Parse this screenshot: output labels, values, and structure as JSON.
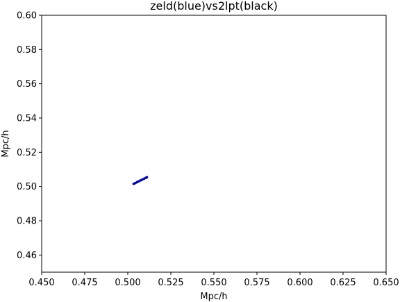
{
  "chart_data": {
    "type": "scatter",
    "title": "zeld(blue)vs2lpt(black)",
    "xlabel": "Mpc/h",
    "ylabel": "Mpc/h",
    "xlim": [
      0.45,
      0.65
    ],
    "ylim": [
      0.45,
      0.6
    ],
    "xticks": [
      "0.450",
      "0.475",
      "0.500",
      "0.525",
      "0.550",
      "0.575",
      "0.600",
      "0.625",
      "0.650"
    ],
    "yticks": [
      "0.46",
      "0.48",
      "0.50",
      "0.52",
      "0.54",
      "0.56",
      "0.58",
      "0.60"
    ],
    "grid": false,
    "series": [
      {
        "color": "#000000",
        "points": [
          [
            0.5035,
            0.5015
          ],
          [
            0.5045,
            0.502
          ],
          [
            0.5055,
            0.5025
          ],
          [
            0.5065,
            0.503
          ],
          [
            0.5075,
            0.5035
          ],
          [
            0.5085,
            0.504
          ],
          [
            0.5095,
            0.5045
          ],
          [
            0.5105,
            0.505
          ],
          [
            0.5112,
            0.5054
          ]
        ]
      },
      {
        "color": "#0000cc",
        "points": [
          [
            0.5033,
            0.5016
          ],
          [
            0.5043,
            0.5021
          ],
          [
            0.5053,
            0.5026
          ],
          [
            0.5063,
            0.5031
          ],
          [
            0.5073,
            0.5036
          ],
          [
            0.5083,
            0.5041
          ],
          [
            0.5093,
            0.5046
          ],
          [
            0.5103,
            0.5051
          ],
          [
            0.511,
            0.5055
          ]
        ]
      }
    ]
  }
}
